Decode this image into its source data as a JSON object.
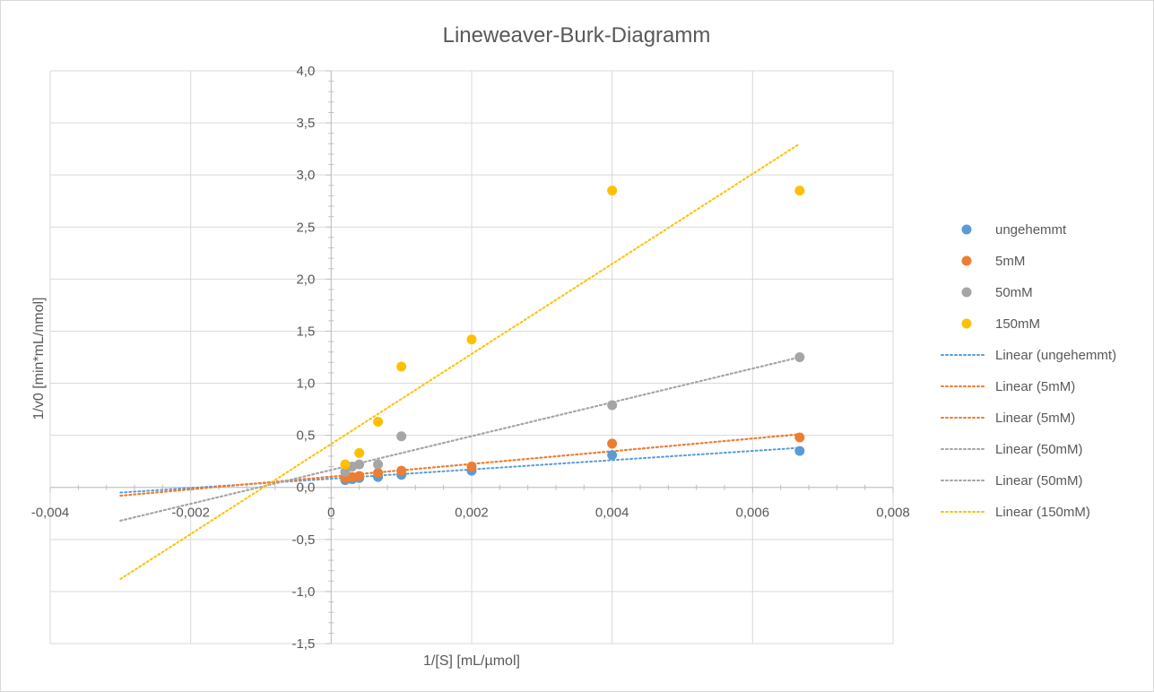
{
  "chart_data": {
    "type": "scatter",
    "title": "Lineweaver-Burk-Diagramm",
    "xlabel": "1/[S] [mL/µmol]",
    "ylabel": "1/v0 [min*mL/nmol]",
    "xlim": [
      -0.004,
      0.008
    ],
    "ylim": [
      -1.5,
      4.0
    ],
    "x_ticks": [
      -0.004,
      -0.002,
      0,
      0.002,
      0.004,
      0.006,
      0.008
    ],
    "x_tick_labels": [
      "-0,004",
      "-0,002",
      "0",
      "0,002",
      "0,004",
      "0,006",
      "0,008"
    ],
    "y_ticks": [
      -1.5,
      -1.0,
      -0.5,
      0.0,
      0.5,
      1.0,
      1.5,
      2.0,
      2.5,
      3.0,
      3.5,
      4.0
    ],
    "y_tick_labels": [
      "-1,5",
      "-1,0",
      "-0,5",
      "0,0",
      "0,5",
      "1,0",
      "1,5",
      "2,0",
      "2,5",
      "3,0",
      "3,5",
      "4,0"
    ],
    "grid": true,
    "legend_position": "right",
    "series": [
      {
        "name": "ungehemmt",
        "color": "#5B9BD5",
        "x": [
          0.0002,
          0.0003,
          0.0004,
          0.000667,
          0.001,
          0.002,
          0.004,
          0.00667
        ],
        "y": [
          0.07,
          0.08,
          0.09,
          0.1,
          0.12,
          0.16,
          0.31,
          0.35
        ]
      },
      {
        "name": "5mM",
        "color": "#ED7D31",
        "x": [
          0.0002,
          0.0003,
          0.0004,
          0.000667,
          0.001,
          0.002,
          0.004,
          0.00667
        ],
        "y": [
          0.09,
          0.1,
          0.11,
          0.14,
          0.16,
          0.2,
          0.42,
          0.48
        ]
      },
      {
        "name": "50mM",
        "color": "#A5A5A5",
        "x": [
          0.0002,
          0.0003,
          0.0004,
          0.000667,
          0.001,
          0.004,
          0.00667
        ],
        "y": [
          0.15,
          0.2,
          0.22,
          0.22,
          0.49,
          0.79,
          1.25
        ]
      },
      {
        "name": "150mM",
        "color": "#FFC000",
        "x": [
          0.0002,
          0.0004,
          0.000667,
          0.001,
          0.002,
          0.004,
          0.00667
        ],
        "y": [
          0.22,
          0.33,
          0.63,
          1.16,
          1.42,
          2.85,
          2.85
        ]
      }
    ],
    "trendlines": [
      {
        "name": "Linear (ungehemmt)",
        "color": "#5B9BD5",
        "x_range": [
          -0.003,
          0.00667
        ],
        "y_range": [
          -0.05,
          0.38
        ]
      },
      {
        "name": "Linear (5mM)",
        "color": "#ED7D31",
        "x_range": [
          -0.003,
          0.00667
        ],
        "y_range": [
          -0.08,
          0.51
        ]
      },
      {
        "name": "Linear (5mM)",
        "color": "#ED7D31",
        "x_range": [
          -0.003,
          0.00667
        ],
        "y_range": [
          -0.08,
          0.51
        ]
      },
      {
        "name": "Linear (50mM)",
        "color": "#A5A5A5",
        "x_range": [
          -0.003,
          0.00667
        ],
        "y_range": [
          -0.32,
          1.25
        ]
      },
      {
        "name": "Linear (50mM)",
        "color": "#A5A5A5",
        "x_range": [
          -0.003,
          0.00667
        ],
        "y_range": [
          -0.32,
          1.25
        ]
      },
      {
        "name": "Linear (150mM)",
        "color": "#FFC000",
        "x_range": [
          -0.003,
          0.00667
        ],
        "y_range": [
          -0.88,
          3.3
        ]
      }
    ]
  }
}
